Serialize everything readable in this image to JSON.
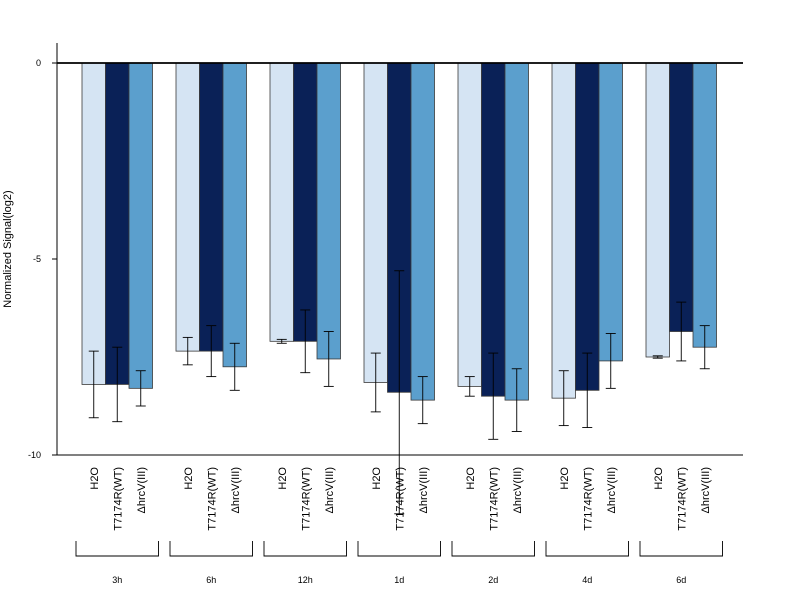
{
  "chart_data": {
    "type": "bar",
    "ylabel": "Normalized Signal(log2)",
    "ylim": [
      -10,
      0.5
    ],
    "yticks": [
      0,
      -5,
      -10
    ],
    "ytick_labels": [
      "0",
      "-5",
      "-10"
    ],
    "groups": [
      "3h",
      "6h",
      "12h",
      "1d",
      "2d",
      "4d",
      "6d"
    ],
    "bar_labels": [
      "H2O",
      "T7174R(WT)",
      "ΔhrcV(III)"
    ],
    "colors": [
      "#d5e4f3",
      "#0a2157",
      "#5b9fcd"
    ],
    "legend": "none",
    "grid": false,
    "series": [
      {
        "values": [
          -8.2,
          -7.35,
          -7.1,
          -8.15,
          -8.25,
          -8.55,
          -7.5
        ],
        "error": [
          0.85,
          0.35,
          0.05,
          0.75,
          0.25,
          0.7,
          0.03
        ]
      },
      {
        "values": [
          -8.2,
          -7.35,
          -7.1,
          -8.4,
          -8.5,
          -8.35,
          -6.85
        ],
        "error": [
          0.95,
          0.65,
          0.8,
          3.1,
          1.1,
          0.95,
          0.75
        ]
      },
      {
        "values": [
          -8.3,
          -7.75,
          -7.55,
          -8.6,
          -8.6,
          -7.6,
          -7.25
        ],
        "error": [
          0.45,
          0.6,
          0.7,
          0.6,
          0.8,
          0.7,
          0.55
        ]
      }
    ]
  }
}
